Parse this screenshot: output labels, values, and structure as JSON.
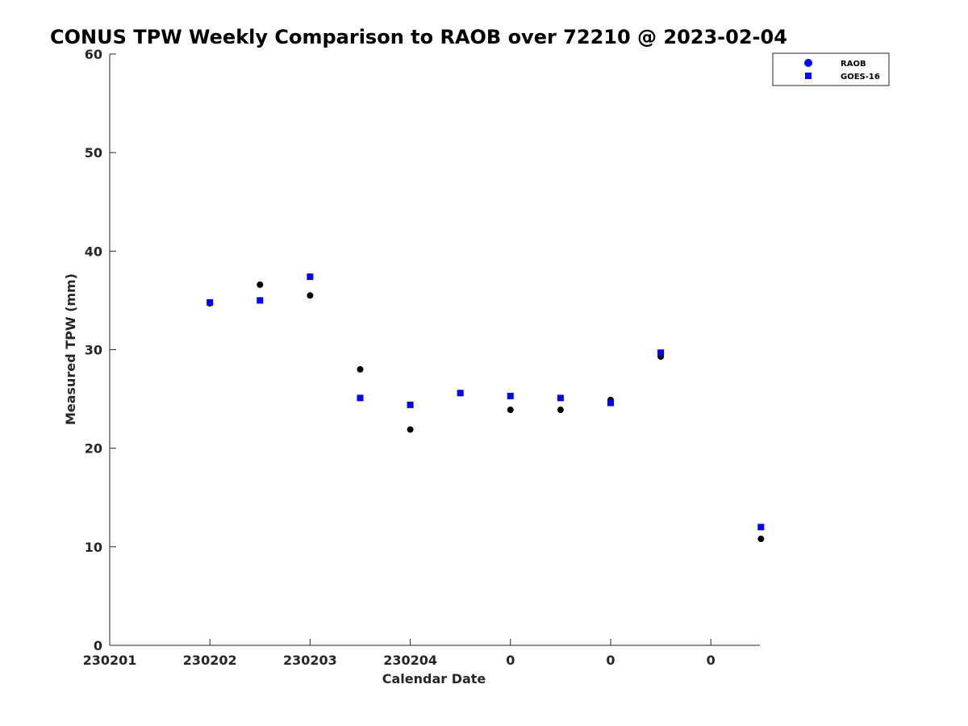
{
  "chart_data": {
    "type": "scatter",
    "title": "CONUS TPW Weekly Comparison to RAOB over 72210 @ 2023-02-04",
    "xlabel": "Calendar Date",
    "ylabel": "Measured TPW (mm)",
    "xlim": [
      0,
      6.5
    ],
    "ylim": [
      0,
      60
    ],
    "x_ticks": [
      {
        "pos": 0,
        "label": "230201"
      },
      {
        "pos": 1,
        "label": "230202"
      },
      {
        "pos": 2,
        "label": "230203"
      },
      {
        "pos": 3,
        "label": "230204"
      },
      {
        "pos": 4,
        "label": "0"
      },
      {
        "pos": 5,
        "label": "0"
      },
      {
        "pos": 6,
        "label": "0"
      }
    ],
    "y_ticks": [
      0,
      10,
      20,
      30,
      40,
      50,
      60
    ],
    "series": [
      {
        "name": "RAOB",
        "marker": "circle",
        "color": "#000000",
        "legend_color": "#0000ff",
        "x": [
          1.0,
          1.5,
          2.0,
          2.5,
          3.0,
          3.5,
          4.0,
          4.5,
          5.0,
          5.5,
          6.5
        ],
        "y": [
          34.7,
          36.6,
          35.5,
          28.0,
          21.9,
          25.6,
          23.9,
          23.9,
          24.9,
          29.3,
          10.8
        ]
      },
      {
        "name": "GOES-16",
        "marker": "square",
        "color": "#0000ff",
        "x": [
          1.0,
          1.5,
          2.0,
          2.5,
          3.0,
          3.5,
          4.0,
          4.5,
          5.0,
          5.5,
          6.5
        ],
        "y": [
          34.8,
          35.0,
          37.4,
          25.1,
          24.4,
          25.6,
          25.3,
          25.1,
          24.6,
          29.7,
          12.0
        ]
      }
    ],
    "legend_position": "top-right"
  }
}
